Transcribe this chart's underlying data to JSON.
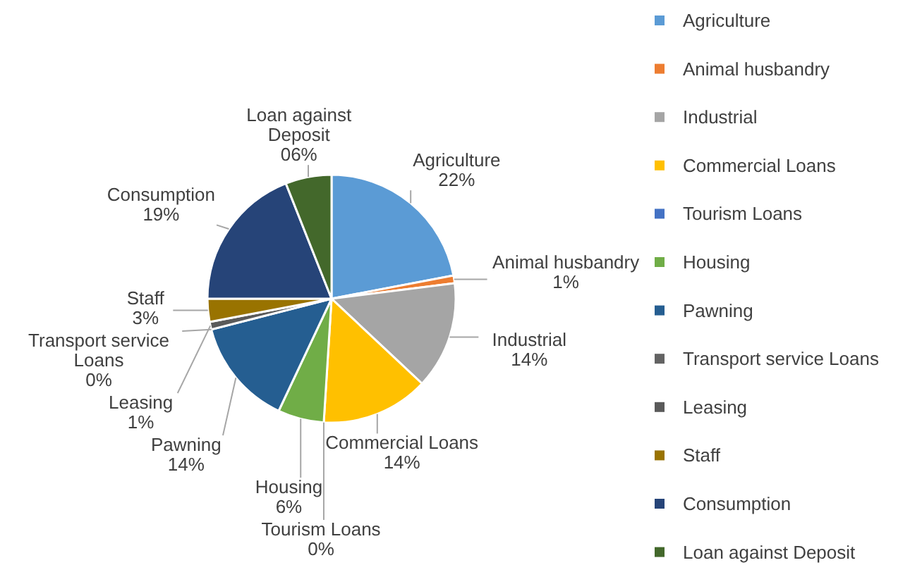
{
  "chart_data": {
    "type": "pie",
    "categories": [
      "Agriculture",
      "Animal husbandry",
      "Industrial",
      "Commercial Loans",
      "Tourism Loans",
      "Housing",
      "Pawning",
      "Transport service Loans",
      "Leasing",
      "Staff",
      "Consumption",
      "Loan against Deposit"
    ],
    "values": [
      22,
      1,
      14,
      14,
      0,
      6,
      14,
      0,
      1,
      3,
      19,
      6
    ],
    "value_labels": [
      "22%",
      "1%",
      "14%",
      "14%",
      "0%",
      "6%",
      "14%",
      "0%",
      "1%",
      "3%",
      "19%",
      "06%"
    ],
    "colors": [
      "#5b9bd5",
      "#ed7d31",
      "#a5a5a5",
      "#ffc000",
      "#4472c4",
      "#70ad47",
      "#255e91",
      "#636363",
      "#5a5a5a",
      "#997300",
      "#264478",
      "#43682b"
    ],
    "legend": "right"
  }
}
